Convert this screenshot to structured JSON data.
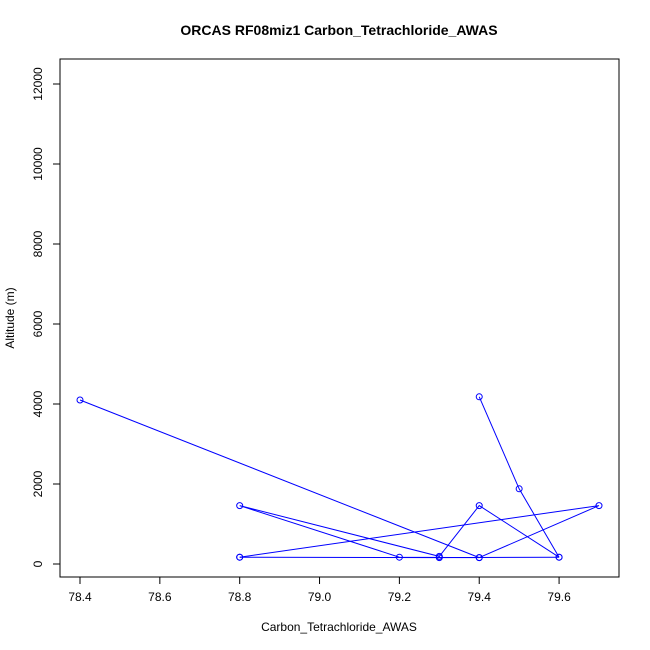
{
  "chart_data": {
    "type": "line",
    "title": "ORCAS RF08miz1 Carbon_Tetrachloride_AWAS",
    "xlabel": "Carbon_Tetrachloride_AWAS",
    "ylabel": "Altitude (m)",
    "xlim": [
      78.4,
      79.7
    ],
    "ylim": [
      0,
      12000
    ],
    "x_ticks": [
      "78.4",
      "78.6",
      "78.8",
      "79.0",
      "79.2",
      "79.4",
      "79.6"
    ],
    "y_ticks": [
      "0",
      "2000",
      "4000",
      "6000",
      "8000",
      "10000",
      "12000"
    ],
    "grid": false,
    "series_color": "#0000ff",
    "series": [
      {
        "x": [
          79.4,
          79.5,
          79.6,
          79.4,
          79.3,
          78.8,
          79.2,
          79.4,
          78.4
        ],
        "y": [
          4180,
          1880,
          170,
          1460,
          190,
          1460,
          170,
          160,
          4100
        ],
        "marker": "open-circle"
      },
      {
        "x": [
          78.8,
          79.3,
          79.6
        ],
        "y": [
          170,
          160,
          170
        ],
        "marker": "open-circle"
      },
      {
        "x": [
          78.8,
          79.7,
          79.4
        ],
        "y": [
          170,
          1460,
          160
        ],
        "marker": "open-circle"
      }
    ]
  }
}
